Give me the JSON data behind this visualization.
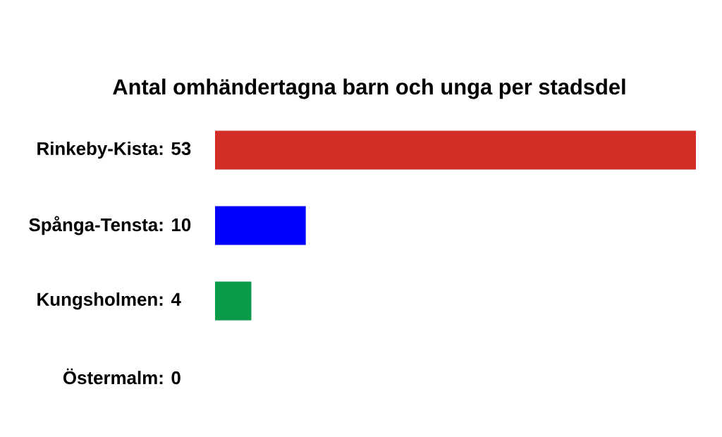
{
  "chart_data": {
    "type": "bar",
    "orientation": "horizontal",
    "title": "Antal omhändertagna barn och unga per stadsdel",
    "categories": [
      "Rinkeby-Kista",
      "Spånga-Tensta",
      "Kungsholmen",
      "Östermalm"
    ],
    "values": [
      53,
      10,
      4,
      0
    ],
    "value_labels": [
      ": 53",
      ": 10",
      ": 4",
      ": 0"
    ],
    "colors": [
      "#d22e27",
      "#0000ff",
      "#0a9a48",
      "#808080"
    ]
  }
}
